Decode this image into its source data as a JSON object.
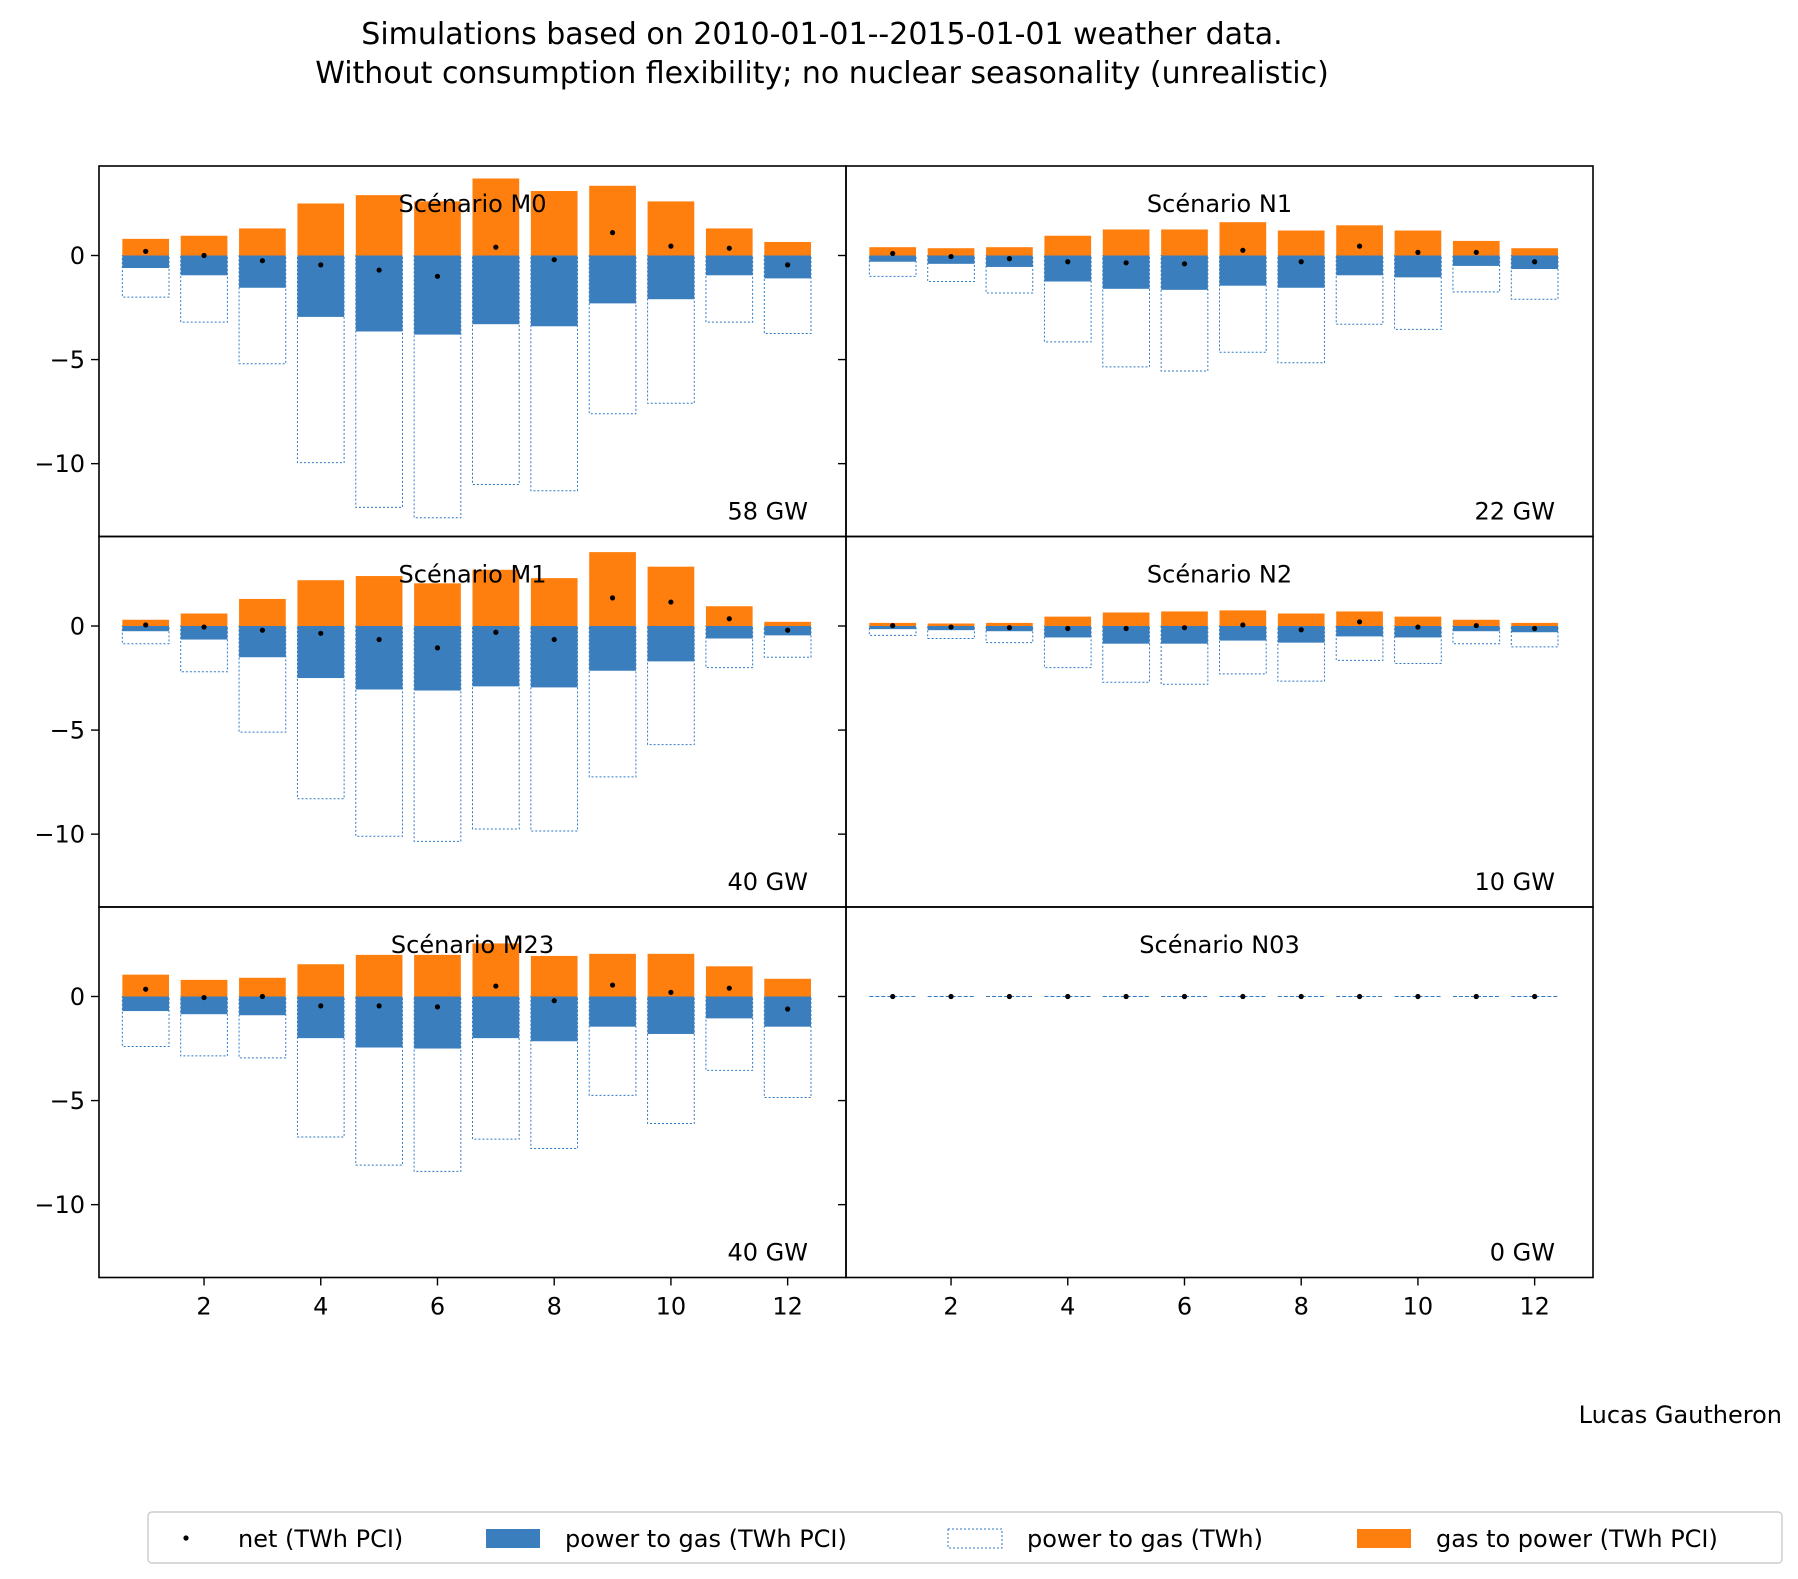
{
  "colors": {
    "power_to_gas_pci": "#3a7ebd",
    "gas_to_power": "#ff7f0e",
    "power_to_gas_outline": "#2f79c5",
    "net": "#000000"
  },
  "suptitle": {
    "line1": "Simulations based on 2010-01-01--2015-01-01 weather data.",
    "line2": "Without consumption flexibility; no nuclear seasonality (unrealistic)"
  },
  "credit": "Lucas Gautheron",
  "legend": {
    "placement": "bottom-center",
    "items": [
      {
        "label": "net (TWh PCI)",
        "icon": "dot"
      },
      {
        "label": "power to gas (TWh PCI)",
        "icon": "filled-rect-blue"
      },
      {
        "label": "power to gas (TWh)",
        "icon": "dashed-outline-rect"
      },
      {
        "label": "gas to power (TWh PCI)",
        "icon": "filled-rect-orange"
      }
    ]
  },
  "chart_data": {
    "type": "bar",
    "layout": "3x2 subplots with shared axes",
    "x": [
      1,
      2,
      3,
      4,
      5,
      6,
      7,
      8,
      9,
      10,
      11,
      12
    ],
    "xticks": [
      2,
      4,
      6,
      8,
      10,
      12
    ],
    "xlim": [
      0.2,
      13.0
    ],
    "yticks": [
      0,
      -5,
      -10
    ],
    "ylim": [
      -13.5,
      4.3
    ],
    "grid": false,
    "panels": [
      {
        "title": "Scénario M0",
        "capacity_label": "58 GW",
        "series": [
          {
            "name": "gas to power (TWh PCI)",
            "values": [
              0.8,
              0.95,
              1.3,
              2.5,
              2.9,
              2.6,
              3.7,
              3.1,
              3.35,
              2.6,
              1.3,
              0.65
            ]
          },
          {
            "name": "power to gas (TWh PCI)",
            "values": [
              -0.6,
              -0.95,
              -1.55,
              -2.95,
              -3.65,
              -3.8,
              -3.3,
              -3.4,
              -2.3,
              -2.1,
              -0.95,
              -1.1
            ]
          },
          {
            "name": "power to gas (TWh)",
            "values": [
              -2.0,
              -3.2,
              -5.2,
              -9.95,
              -12.1,
              -12.6,
              -11.0,
              -11.3,
              -7.6,
              -7.1,
              -3.2,
              -3.75
            ]
          },
          {
            "name": "net (TWh PCI)",
            "values": [
              0.2,
              0.0,
              -0.25,
              -0.45,
              -0.7,
              -1.0,
              0.4,
              -0.2,
              1.1,
              0.45,
              0.35,
              -0.45
            ]
          }
        ]
      },
      {
        "title": "Scénario N1",
        "capacity_label": "22 GW",
        "series": [
          {
            "name": "gas to power (TWh PCI)",
            "values": [
              0.4,
              0.35,
              0.4,
              0.95,
              1.25,
              1.25,
              1.6,
              1.2,
              1.45,
              1.2,
              0.7,
              0.35
            ]
          },
          {
            "name": "power to gas (TWh PCI)",
            "values": [
              -0.3,
              -0.4,
              -0.55,
              -1.25,
              -1.6,
              -1.65,
              -1.45,
              -1.55,
              -0.95,
              -1.05,
              -0.5,
              -0.65
            ]
          },
          {
            "name": "power to gas (TWh)",
            "values": [
              -1.0,
              -1.25,
              -1.8,
              -4.15,
              -5.35,
              -5.55,
              -4.65,
              -5.15,
              -3.3,
              -3.55,
              -1.75,
              -2.1
            ]
          },
          {
            "name": "net (TWh PCI)",
            "values": [
              0.1,
              -0.05,
              -0.15,
              -0.3,
              -0.35,
              -0.4,
              0.25,
              -0.3,
              0.45,
              0.15,
              0.15,
              -0.3
            ]
          }
        ]
      },
      {
        "title": "Scénario M1",
        "capacity_label": "40 GW",
        "series": [
          {
            "name": "gas to power (TWh PCI)",
            "values": [
              0.3,
              0.6,
              1.3,
              2.2,
              2.4,
              2.05,
              2.7,
              2.3,
              3.55,
              2.85,
              0.95,
              0.2
            ]
          },
          {
            "name": "power to gas (TWh PCI)",
            "values": [
              -0.25,
              -0.65,
              -1.5,
              -2.5,
              -3.05,
              -3.1,
              -2.9,
              -2.95,
              -2.15,
              -1.7,
              -0.6,
              -0.45
            ]
          },
          {
            "name": "power to gas (TWh)",
            "values": [
              -0.85,
              -2.2,
              -5.1,
              -8.3,
              -10.1,
              -10.35,
              -9.75,
              -9.85,
              -7.25,
              -5.7,
              -2.0,
              -1.5
            ]
          },
          {
            "name": "net (TWh PCI)",
            "values": [
              0.05,
              -0.05,
              -0.2,
              -0.35,
              -0.65,
              -1.05,
              -0.3,
              -0.65,
              1.35,
              1.15,
              0.35,
              -0.2
            ]
          }
        ]
      },
      {
        "title": "Scénario N2",
        "capacity_label": "10 GW",
        "series": [
          {
            "name": "gas to power (TWh PCI)",
            "values": [
              0.15,
              0.12,
              0.15,
              0.45,
              0.65,
              0.7,
              0.75,
              0.6,
              0.7,
              0.45,
              0.3,
              0.15
            ]
          },
          {
            "name": "power to gas (TWh PCI)",
            "values": [
              -0.15,
              -0.2,
              -0.25,
              -0.55,
              -0.85,
              -0.85,
              -0.7,
              -0.8,
              -0.5,
              -0.55,
              -0.25,
              -0.3
            ]
          },
          {
            "name": "power to gas (TWh)",
            "values": [
              -0.45,
              -0.6,
              -0.8,
              -2.0,
              -2.7,
              -2.8,
              -2.3,
              -2.65,
              -1.65,
              -1.8,
              -0.85,
              -1.0
            ]
          },
          {
            "name": "net (TWh PCI)",
            "values": [
              0.02,
              -0.05,
              -0.08,
              -0.12,
              -0.12,
              -0.08,
              0.05,
              -0.18,
              0.2,
              -0.05,
              0.02,
              -0.12
            ]
          }
        ]
      },
      {
        "title": "Scénario M23",
        "capacity_label": "40 GW",
        "series": [
          {
            "name": "gas to power (TWh PCI)",
            "values": [
              1.05,
              0.8,
              0.9,
              1.55,
              2.0,
              2.0,
              2.55,
              1.95,
              2.05,
              2.05,
              1.45,
              0.85
            ]
          },
          {
            "name": "power to gas (TWh PCI)",
            "values": [
              -0.7,
              -0.85,
              -0.9,
              -2.0,
              -2.45,
              -2.5,
              -2.0,
              -2.15,
              -1.45,
              -1.8,
              -1.05,
              -1.45
            ]
          },
          {
            "name": "power to gas (TWh)",
            "values": [
              -2.4,
              -2.85,
              -2.95,
              -6.75,
              -8.1,
              -8.4,
              -6.85,
              -7.3,
              -4.75,
              -6.1,
              -3.55,
              -4.85
            ]
          },
          {
            "name": "net (TWh PCI)",
            "values": [
              0.35,
              -0.05,
              0.0,
              -0.45,
              -0.45,
              -0.5,
              0.5,
              -0.2,
              0.55,
              0.2,
              0.4,
              -0.6
            ]
          }
        ]
      },
      {
        "title": "Scénario N03",
        "capacity_label": "0 GW",
        "series": [
          {
            "name": "gas to power (TWh PCI)",
            "values": [
              0,
              0,
              0,
              0,
              0,
              0,
              0,
              0,
              0,
              0,
              0,
              0
            ]
          },
          {
            "name": "power to gas (TWh PCI)",
            "values": [
              0,
              0,
              0,
              0,
              0,
              0,
              0,
              0,
              0,
              0,
              0,
              0
            ]
          },
          {
            "name": "power to gas (TWh)",
            "values": [
              0,
              0,
              0,
              0,
              0,
              0,
              0,
              0,
              0,
              0,
              0,
              0
            ]
          },
          {
            "name": "net (TWh PCI)",
            "values": [
              0,
              0,
              0,
              0,
              0,
              0,
              0,
              0,
              0,
              0,
              0,
              0
            ]
          }
        ]
      }
    ]
  }
}
